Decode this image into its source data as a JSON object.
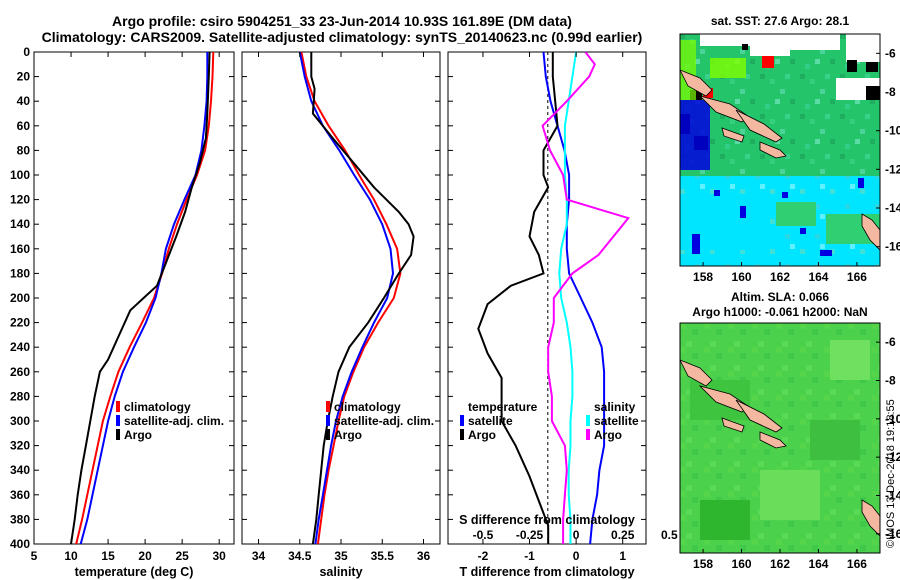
{
  "title": {
    "line1": "Argo profile: csiro 5904251_33 23-Jun-2014 10.93S 161.89E (DM data)",
    "line2": "Climatology: CARS2009. Satellite-adjusted climatology: synTS_20140623.nc (0.99d earlier)"
  },
  "colors": {
    "climatology": "#ff0000",
    "satellite": "#0000ff",
    "argo": "#000000",
    "salinity_diff": "#ff00ff",
    "salinity_sat": "#00ffff"
  },
  "chart_data": [
    {
      "type": "line",
      "name": "temperature",
      "xlabel": "temperature (deg C)",
      "ylabel": "",
      "xlim": [
        5,
        32
      ],
      "ylim": [
        400,
        0
      ],
      "xticks": [
        5,
        10,
        15,
        20,
        25,
        30
      ],
      "yticks": [
        0,
        20,
        40,
        60,
        80,
        100,
        120,
        140,
        160,
        180,
        200,
        220,
        240,
        260,
        280,
        300,
        320,
        340,
        360,
        380,
        400
      ],
      "legend": {
        "position": "lower-right",
        "entries": [
          "climatology",
          "satellite-adj. clim.",
          "Argo"
        ]
      },
      "series": [
        {
          "name": "climatology",
          "color": "#ff0000",
          "points": [
            [
              29.2,
              0
            ],
            [
              29.1,
              20
            ],
            [
              28.9,
              40
            ],
            [
              28.6,
              60
            ],
            [
              28.1,
              80
            ],
            [
              27.0,
              100
            ],
            [
              25.6,
              120
            ],
            [
              24.3,
              140
            ],
            [
              23.2,
              160
            ],
            [
              22.3,
              180
            ],
            [
              21.2,
              200
            ],
            [
              19.6,
              220
            ],
            [
              17.9,
              240
            ],
            [
              16.4,
              260
            ],
            [
              15.3,
              280
            ],
            [
              14.3,
              300
            ],
            [
              13.6,
              320
            ],
            [
              12.9,
              340
            ],
            [
              12.2,
              360
            ],
            [
              11.5,
              380
            ],
            [
              10.7,
              400
            ]
          ]
        },
        {
          "name": "satellite-adj. clim.",
          "color": "#0000ff",
          "points": [
            [
              28.4,
              0
            ],
            [
              28.4,
              20
            ],
            [
              28.3,
              40
            ],
            [
              28.0,
              60
            ],
            [
              27.6,
              80
            ],
            [
              26.8,
              100
            ],
            [
              25.3,
              120
            ],
            [
              23.9,
              140
            ],
            [
              22.8,
              160
            ],
            [
              22.2,
              180
            ],
            [
              21.4,
              200
            ],
            [
              20.1,
              220
            ],
            [
              18.5,
              240
            ],
            [
              17.0,
              260
            ],
            [
              15.9,
              280
            ],
            [
              15.0,
              300
            ],
            [
              14.3,
              320
            ],
            [
              13.6,
              340
            ],
            [
              12.9,
              360
            ],
            [
              12.2,
              380
            ],
            [
              11.3,
              400
            ]
          ]
        },
        {
          "name": "Argo",
          "color": "#000000",
          "points": [
            [
              28.7,
              0
            ],
            [
              28.6,
              20
            ],
            [
              28.4,
              50
            ],
            [
              28.2,
              70
            ],
            [
              27.4,
              90
            ],
            [
              26.3,
              110
            ],
            [
              25.4,
              130
            ],
            [
              24.2,
              150
            ],
            [
              22.9,
              170
            ],
            [
              21.6,
              190
            ],
            [
              19.8,
              200
            ],
            [
              18.0,
              210
            ],
            [
              16.5,
              230
            ],
            [
              15.0,
              250
            ],
            [
              13.9,
              260
            ],
            [
              13.2,
              280
            ],
            [
              12.6,
              300
            ],
            [
              12.0,
              320
            ],
            [
              11.4,
              340
            ],
            [
              10.9,
              360
            ],
            [
              10.5,
              380
            ],
            [
              10.0,
              400
            ]
          ]
        }
      ]
    },
    {
      "type": "line",
      "name": "salinity",
      "xlabel": "salinity",
      "ylabel": "",
      "xlim": [
        33.8,
        36.2
      ],
      "ylim": [
        400,
        0
      ],
      "xticks": [
        34,
        34.5,
        35,
        35.5,
        36
      ],
      "legend": {
        "position": "lower-right",
        "entries": [
          "climatology",
          "satellite-adj. clim.",
          "Argo"
        ]
      },
      "series": [
        {
          "name": "climatology",
          "color": "#ff0000",
          "points": [
            [
              34.52,
              0
            ],
            [
              34.58,
              20
            ],
            [
              34.68,
              40
            ],
            [
              34.85,
              60
            ],
            [
              35.05,
              80
            ],
            [
              35.22,
              100
            ],
            [
              35.4,
              120
            ],
            [
              35.55,
              140
            ],
            [
              35.68,
              160
            ],
            [
              35.72,
              180
            ],
            [
              35.64,
              200
            ],
            [
              35.45,
              220
            ],
            [
              35.28,
              240
            ],
            [
              35.15,
              260
            ],
            [
              35.04,
              280
            ],
            [
              34.97,
              300
            ],
            [
              34.91,
              320
            ],
            [
              34.85,
              340
            ],
            [
              34.8,
              360
            ],
            [
              34.76,
              380
            ],
            [
              34.72,
              400
            ]
          ]
        },
        {
          "name": "satellite-adj. clim.",
          "color": "#0000ff",
          "points": [
            [
              34.5,
              0
            ],
            [
              34.56,
              20
            ],
            [
              34.64,
              40
            ],
            [
              34.78,
              60
            ],
            [
              34.98,
              80
            ],
            [
              35.16,
              100
            ],
            [
              35.35,
              120
            ],
            [
              35.5,
              140
            ],
            [
              35.6,
              160
            ],
            [
              35.63,
              180
            ],
            [
              35.56,
              200
            ],
            [
              35.4,
              220
            ],
            [
              35.26,
              240
            ],
            [
              35.13,
              260
            ],
            [
              35.02,
              280
            ],
            [
              34.94,
              300
            ],
            [
              34.88,
              320
            ],
            [
              34.83,
              340
            ],
            [
              34.78,
              360
            ],
            [
              34.73,
              380
            ],
            [
              34.69,
              400
            ]
          ]
        },
        {
          "name": "Argo",
          "color": "#000000",
          "points": [
            [
              34.64,
              0
            ],
            [
              34.64,
              20
            ],
            [
              34.68,
              30
            ],
            [
              34.66,
              50
            ],
            [
              34.9,
              70
            ],
            [
              35.15,
              90
            ],
            [
              35.4,
              110
            ],
            [
              35.7,
              130
            ],
            [
              35.82,
              140
            ],
            [
              35.88,
              150
            ],
            [
              35.85,
              165
            ],
            [
              35.7,
              180
            ],
            [
              35.52,
              200
            ],
            [
              35.33,
              220
            ],
            [
              35.1,
              240
            ],
            [
              34.97,
              260
            ],
            [
              34.9,
              280
            ],
            [
              34.84,
              300
            ],
            [
              34.79,
              320
            ],
            [
              34.76,
              340
            ],
            [
              34.73,
              360
            ],
            [
              34.7,
              380
            ],
            [
              34.66,
              400
            ]
          ]
        }
      ]
    },
    {
      "type": "line",
      "name": "difference",
      "xlabel": "T difference from climatology",
      "top_label": "S difference from climatology",
      "xlim": [
        -2.75,
        1.5
      ],
      "xticks": [
        -2,
        -1,
        0,
        1
      ],
      "s_xlim": [
        -0.6875,
        0.375
      ],
      "s_xticks": [
        -0.5,
        -0.25,
        0,
        0.25,
        0.5
      ],
      "ylim": [
        400,
        0
      ],
      "legend_left": {
        "title": "temperature",
        "entries": [
          "satellite",
          "Argo"
        ]
      },
      "legend_right": {
        "title": "salinity",
        "entries": [
          "satellite",
          "Argo"
        ]
      },
      "series": [
        {
          "name": "T satellite",
          "axis": "T",
          "color": "#0000ff",
          "points": [
            [
              -0.7,
              0
            ],
            [
              -0.65,
              20
            ],
            [
              -0.55,
              40
            ],
            [
              -0.4,
              60
            ],
            [
              -0.25,
              80
            ],
            [
              -0.15,
              100
            ],
            [
              -0.15,
              120
            ],
            [
              -0.2,
              140
            ],
            [
              -0.2,
              160
            ],
            [
              -0.15,
              180
            ],
            [
              0.1,
              200
            ],
            [
              0.35,
              220
            ],
            [
              0.55,
              240
            ],
            [
              0.6,
              260
            ],
            [
              0.6,
              280
            ],
            [
              0.6,
              300
            ],
            [
              0.6,
              320
            ],
            [
              0.5,
              340
            ],
            [
              0.45,
              360
            ],
            [
              0.35,
              380
            ],
            [
              0.3,
              400
            ]
          ]
        },
        {
          "name": "T Argo",
          "axis": "T",
          "color": "#000000",
          "points": [
            [
              -0.5,
              0
            ],
            [
              -0.5,
              20
            ],
            [
              -0.45,
              40
            ],
            [
              -0.4,
              60
            ],
            [
              -0.7,
              80
            ],
            [
              -0.7,
              100
            ],
            [
              -0.6,
              110
            ],
            [
              -0.9,
              130
            ],
            [
              -1.0,
              150
            ],
            [
              -0.8,
              165
            ],
            [
              -0.7,
              180
            ],
            [
              -1.4,
              190
            ],
            [
              -1.9,
              205
            ],
            [
              -2.1,
              225
            ],
            [
              -1.9,
              245
            ],
            [
              -1.6,
              265
            ],
            [
              -1.6,
              285
            ],
            [
              -1.6,
              300
            ],
            [
              -1.3,
              320
            ],
            [
              -1.0,
              345
            ],
            [
              -0.8,
              365
            ],
            [
              -0.6,
              385
            ],
            [
              -0.6,
              400
            ]
          ]
        },
        {
          "name": "S satellite",
          "axis": "S",
          "color": "#00ffff",
          "points": [
            [
              0.0,
              0
            ],
            [
              -0.02,
              20
            ],
            [
              -0.04,
              40
            ],
            [
              -0.06,
              60
            ],
            [
              -0.06,
              80
            ],
            [
              -0.06,
              100
            ],
            [
              -0.05,
              120
            ],
            [
              -0.05,
              140
            ],
            [
              -0.08,
              160
            ],
            [
              -0.09,
              180
            ],
            [
              -0.08,
              200
            ],
            [
              -0.05,
              220
            ],
            [
              -0.03,
              240
            ],
            [
              -0.02,
              260
            ],
            [
              -0.02,
              280
            ],
            [
              -0.03,
              300
            ],
            [
              -0.03,
              320
            ],
            [
              -0.04,
              340
            ],
            [
              -0.04,
              360
            ],
            [
              -0.03,
              380
            ],
            [
              -0.03,
              400
            ]
          ]
        },
        {
          "name": "S Argo",
          "axis": "S",
          "color": "#ff00ff",
          "points": [
            [
              0.05,
              0
            ],
            [
              0.1,
              10
            ],
            [
              0.07,
              20
            ],
            [
              -0.05,
              40
            ],
            [
              -0.18,
              60
            ],
            [
              -0.14,
              80
            ],
            [
              -0.07,
              100
            ],
            [
              -0.05,
              120
            ],
            [
              0.28,
              135
            ],
            [
              0.2,
              150
            ],
            [
              0.12,
              165
            ],
            [
              -0.02,
              180
            ],
            [
              -0.12,
              200
            ],
            [
              -0.12,
              220
            ],
            [
              -0.15,
              240
            ],
            [
              -0.15,
              260
            ],
            [
              -0.13,
              280
            ],
            [
              -0.13,
              300
            ],
            [
              -0.06,
              320
            ],
            [
              -0.05,
              340
            ],
            [
              -0.06,
              360
            ],
            [
              -0.07,
              380
            ],
            [
              -0.07,
              400
            ]
          ]
        }
      ]
    },
    {
      "type": "heatmap",
      "name": "sst-map",
      "title": "sat. SST: 27.6 Argo: 28.1",
      "xlim": [
        156.8,
        167.2
      ],
      "ylim": [
        -17,
        -5
      ],
      "xticks": [
        158,
        160,
        162,
        164,
        166
      ],
      "yticks": [
        -6,
        -8,
        -10,
        -12,
        -14,
        -16
      ]
    },
    {
      "type": "heatmap",
      "name": "sla-map",
      "title": "Altim. SLA: 0.066",
      "subtitle": "Argo h1000: -0.061 h2000: NaN",
      "xlim": [
        156.8,
        167.2
      ],
      "ylim": [
        -17,
        -5
      ],
      "xticks": [
        158,
        160,
        162,
        164,
        166
      ],
      "yticks": [
        -6,
        -8,
        -10,
        -12,
        -14,
        -16
      ]
    }
  ],
  "watermark": "©IMOS 13-Dec-2018 19:18:55"
}
